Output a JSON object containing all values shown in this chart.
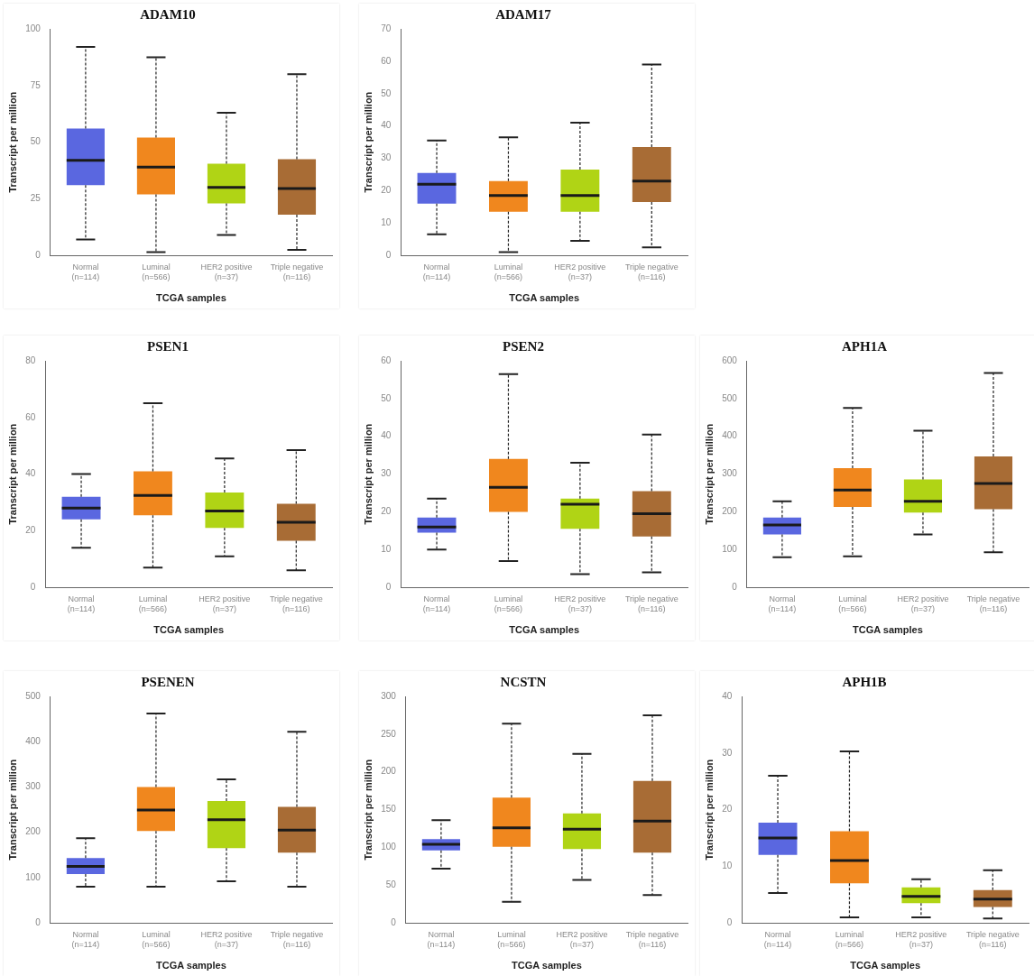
{
  "chart_data": [
    {
      "type": "box",
      "title": "ADAM10",
      "xlabel": "TCGA samples",
      "ylabel": "Transcript per million",
      "categories": [
        "Normal\n(n=114)",
        "Luminal\n(n=566)",
        "HER2 positive\n(n=37)",
        "Triple negative\n(n=116)"
      ],
      "colors": [
        "#5a67e0",
        "#f0871e",
        "#b0d415",
        "#a86c35"
      ],
      "ylim": [
        0,
        100
      ],
      "yticks": [
        0,
        25,
        50,
        75,
        100
      ],
      "grid": false,
      "legend": false,
      "boxes": [
        {
          "low": 7,
          "q1": 31,
          "median": 42,
          "q3": 56,
          "high": 92
        },
        {
          "low": 1.5,
          "q1": 27,
          "median": 39,
          "q3": 52,
          "high": 87.5
        },
        {
          "low": 9,
          "q1": 23,
          "median": 30,
          "q3": 40.5,
          "high": 63
        },
        {
          "low": 2.5,
          "q1": 18,
          "median": 29.5,
          "q3": 42.5,
          "high": 80
        }
      ]
    },
    {
      "type": "box",
      "title": "ADAM17",
      "xlabel": "TCGA samples",
      "ylabel": "Transcript per million",
      "categories": [
        "Normal\n(n=114)",
        "Luminal\n(n=566)",
        "HER2 positive\n(n=37)",
        "Triple negative\n(n=116)"
      ],
      "colors": [
        "#5a67e0",
        "#f0871e",
        "#b0d415",
        "#a86c35"
      ],
      "ylim": [
        0,
        70
      ],
      "yticks": [
        0,
        10,
        20,
        30,
        40,
        50,
        60,
        70
      ],
      "grid": false,
      "legend": false,
      "boxes": [
        {
          "low": 6.5,
          "q1": 16,
          "median": 22,
          "q3": 25.5,
          "high": 35.5
        },
        {
          "low": 1,
          "q1": 13.5,
          "median": 18.5,
          "q3": 23,
          "high": 36.5
        },
        {
          "low": 4.5,
          "q1": 13.5,
          "median": 18.5,
          "q3": 26.5,
          "high": 41
        },
        {
          "low": 2.5,
          "q1": 16.5,
          "median": 23,
          "q3": 33.5,
          "high": 59
        }
      ]
    },
    {
      "type": "box",
      "title": "PSEN1",
      "xlabel": "TCGA samples",
      "ylabel": "Transcript per million",
      "categories": [
        "Normal\n(n=114)",
        "Luminal\n(n=566)",
        "HER2 positive\n(n=37)",
        "Triple negative\n(n=116)"
      ],
      "colors": [
        "#5a67e0",
        "#f0871e",
        "#b0d415",
        "#a86c35"
      ],
      "ylim": [
        0,
        80
      ],
      "yticks": [
        0,
        20,
        40,
        60,
        80
      ],
      "grid": false,
      "legend": false,
      "boxes": [
        {
          "low": 14,
          "q1": 24,
          "median": 28,
          "q3": 32,
          "high": 40
        },
        {
          "low": 7,
          "q1": 25.5,
          "median": 32.5,
          "q3": 41,
          "high": 65
        },
        {
          "low": 11,
          "q1": 21,
          "median": 27,
          "q3": 33.5,
          "high": 45.5
        },
        {
          "low": 6,
          "q1": 16.5,
          "median": 23,
          "q3": 29.5,
          "high": 48.5
        }
      ]
    },
    {
      "type": "box",
      "title": "PSEN2",
      "xlabel": "TCGA samples",
      "ylabel": "Transcript per million",
      "categories": [
        "Normal\n(n=114)",
        "Luminal\n(n=566)",
        "HER2 positive\n(n=37)",
        "Triple negative\n(n=116)"
      ],
      "colors": [
        "#5a67e0",
        "#f0871e",
        "#b0d415",
        "#a86c35"
      ],
      "ylim": [
        0,
        60
      ],
      "yticks": [
        0,
        10,
        20,
        30,
        40,
        50,
        60
      ],
      "grid": false,
      "legend": false,
      "boxes": [
        {
          "low": 10,
          "q1": 14.5,
          "median": 16,
          "q3": 18.5,
          "high": 23.5
        },
        {
          "low": 7,
          "q1": 20,
          "median": 26.5,
          "q3": 34,
          "high": 56.5
        },
        {
          "low": 3.5,
          "q1": 15.5,
          "median": 22,
          "q3": 23.5,
          "high": 33
        },
        {
          "low": 4,
          "q1": 13.5,
          "median": 19.5,
          "q3": 25.5,
          "high": 40.5
        }
      ]
    },
    {
      "type": "box",
      "title": "APH1A",
      "xlabel": "TCGA samples",
      "ylabel": "Transcript per million",
      "categories": [
        "Normal\n(n=114)",
        "Luminal\n(n=566)",
        "HER2 positive\n(n=37)",
        "Triple negative\n(n=116)"
      ],
      "colors": [
        "#5a67e0",
        "#f0871e",
        "#b0d415",
        "#a86c35"
      ],
      "ylim": [
        0,
        600
      ],
      "yticks": [
        0,
        100,
        200,
        300,
        400,
        500,
        600
      ],
      "grid": false,
      "legend": false,
      "boxes": [
        {
          "low": 80,
          "q1": 140,
          "median": 165,
          "q3": 185,
          "high": 228
        },
        {
          "low": 82,
          "q1": 213,
          "median": 258,
          "q3": 316,
          "high": 475
        },
        {
          "low": 140,
          "q1": 198,
          "median": 228,
          "q3": 286,
          "high": 415
        },
        {
          "low": 93,
          "q1": 207,
          "median": 275,
          "q3": 347,
          "high": 568
        }
      ]
    },
    {
      "type": "box",
      "title": "PSENEN",
      "xlabel": "TCGA samples",
      "ylabel": "Transcript per million",
      "categories": [
        "Normal\n(n=114)",
        "Luminal\n(n=566)",
        "HER2 positive\n(n=37)",
        "Triple negative\n(n=116)"
      ],
      "colors": [
        "#5a67e0",
        "#f0871e",
        "#b0d415",
        "#a86c35"
      ],
      "ylim": [
        0,
        500
      ],
      "yticks": [
        0,
        100,
        200,
        300,
        400,
        500
      ],
      "grid": false,
      "legend": false,
      "boxes": [
        {
          "low": 80,
          "q1": 108,
          "median": 125,
          "q3": 143,
          "high": 187
        },
        {
          "low": 80,
          "q1": 203,
          "median": 249,
          "q3": 300,
          "high": 462
        },
        {
          "low": 92,
          "q1": 165,
          "median": 228,
          "q3": 269,
          "high": 317
        },
        {
          "low": 80,
          "q1": 155,
          "median": 205,
          "q3": 256,
          "high": 422
        }
      ]
    },
    {
      "type": "box",
      "title": "NCSTN",
      "xlabel": "TCGA samples",
      "ylabel": "Transcript per million",
      "categories": [
        "Normal\n(n=114)",
        "Luminal\n(n=566)",
        "HER2 positive\n(n=37)",
        "Triple negative\n(n=116)"
      ],
      "colors": [
        "#5a67e0",
        "#f0871e",
        "#b0d415",
        "#a86c35"
      ],
      "ylim": [
        0,
        300
      ],
      "yticks": [
        0,
        50,
        100,
        150,
        200,
        250,
        300
      ],
      "grid": false,
      "legend": false,
      "boxes": [
        {
          "low": 72,
          "q1": 96,
          "median": 104,
          "q3": 111,
          "high": 136
        },
        {
          "low": 28,
          "q1": 101,
          "median": 126,
          "q3": 166,
          "high": 264
        },
        {
          "low": 57,
          "q1": 98,
          "median": 124,
          "q3": 145,
          "high": 224
        },
        {
          "low": 37,
          "q1": 93,
          "median": 135,
          "q3": 188,
          "high": 275
        }
      ]
    },
    {
      "type": "box",
      "title": "APH1B",
      "xlabel": "TCGA samples",
      "ylabel": "Transcript per million",
      "categories": [
        "Normal\n(n=114)",
        "Luminal\n(n=566)",
        "HER2 positive\n(n=37)",
        "Triple negative\n(n=116)"
      ],
      "colors": [
        "#5a67e0",
        "#f0871e",
        "#b0d415",
        "#a86c35"
      ],
      "ylim": [
        0,
        40
      ],
      "yticks": [
        0,
        10,
        20,
        30,
        40
      ],
      "grid": false,
      "legend": false,
      "boxes": [
        {
          "low": 5.3,
          "q1": 12,
          "median": 15,
          "q3": 17.7,
          "high": 26
        },
        {
          "low": 1,
          "q1": 7,
          "median": 11,
          "q3": 16.2,
          "high": 30.3
        },
        {
          "low": 1,
          "q1": 3.5,
          "median": 4.7,
          "q3": 6.3,
          "high": 7.7
        },
        {
          "low": 0.8,
          "q1": 2.8,
          "median": 4.2,
          "q3": 5.8,
          "high": 9.3
        }
      ]
    }
  ]
}
